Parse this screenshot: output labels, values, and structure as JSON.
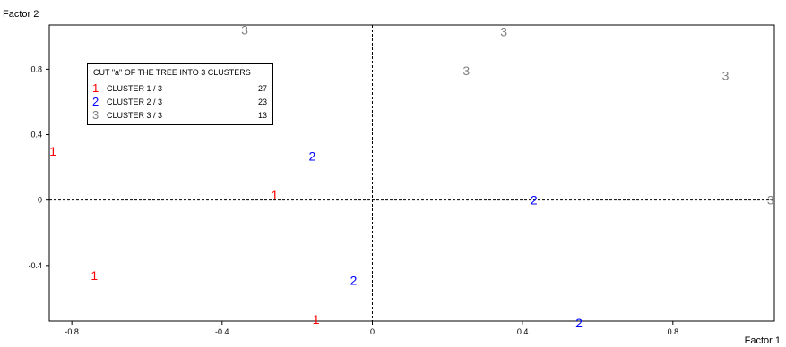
{
  "chart_data": {
    "type": "scatter",
    "xlabel": "Factor 1",
    "ylabel": "Factor 2",
    "xlim": [
      -0.86,
      1.07
    ],
    "ylim": [
      -0.74,
      1.07
    ],
    "xticks": [
      -0.8,
      -0.4,
      0,
      0.4,
      0.8
    ],
    "xtick_labels": [
      "-0.8",
      "-0.4",
      "0",
      "0.4",
      "0.8"
    ],
    "yticks": [
      -0.4,
      0,
      0.4,
      0.8
    ],
    "ytick_labels": [
      "-0.4",
      "0",
      "0.4",
      "0.8"
    ],
    "reference_lines": {
      "x": 0,
      "y": 0,
      "style": "dashed"
    },
    "legend": {
      "title": "CUT \"a\" OF THE TREE INTO  3 CLUSTERS",
      "placement": "top-left",
      "entries": [
        {
          "symbol": "1",
          "label": "CLUSTER  1 / 3",
          "count": "27",
          "color": "#ff0000"
        },
        {
          "symbol": "2",
          "label": "CLUSTER  2 / 3",
          "count": "23",
          "color": "#0000ff"
        },
        {
          "symbol": "3",
          "label": "CLUSTER  3 / 3",
          "count": "13",
          "color": "#808080"
        }
      ]
    },
    "series": [
      {
        "symbol": "1",
        "color": "#ff0000",
        "points": [
          {
            "x": -0.85,
            "y": 0.3
          },
          {
            "x": -0.26,
            "y": 0.03
          },
          {
            "x": -0.74,
            "y": -0.46
          },
          {
            "x": -0.15,
            "y": -0.73
          }
        ]
      },
      {
        "symbol": "2",
        "color": "#0000ff",
        "points": [
          {
            "x": -0.16,
            "y": 0.27
          },
          {
            "x": 0.43,
            "y": 0.0
          },
          {
            "x": -0.05,
            "y": -0.49
          },
          {
            "x": 0.55,
            "y": -0.75
          }
        ]
      },
      {
        "symbol": "3",
        "color": "#808080",
        "points": [
          {
            "x": -0.34,
            "y": 1.04
          },
          {
            "x": 0.35,
            "y": 1.03
          },
          {
            "x": 0.25,
            "y": 0.79
          },
          {
            "x": 0.94,
            "y": 0.76
          },
          {
            "x": 1.06,
            "y": 0.0
          }
        ]
      }
    ]
  }
}
